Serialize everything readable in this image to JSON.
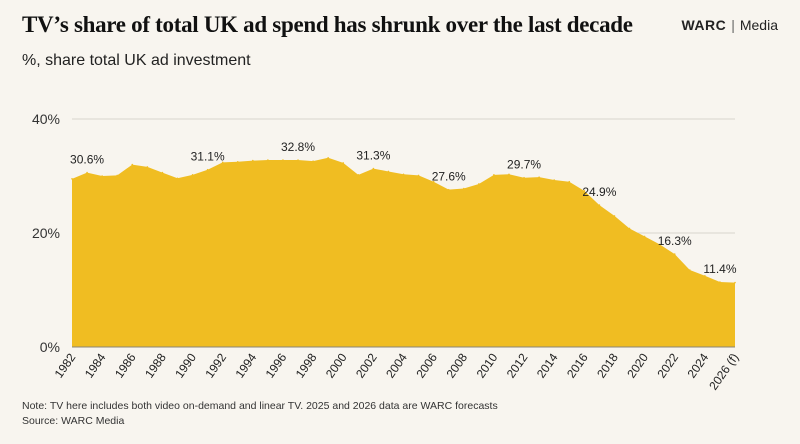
{
  "header": {
    "title": "TV’s share of total UK ad spend has shrunk over the last decade",
    "subtitle": "%, share total UK ad investment",
    "brand_name": "WARC",
    "brand_separator": "|",
    "brand_section": "Media"
  },
  "footer": {
    "note": "Note: TV here includes both video on-demand and linear TV. 2025 and 2026 data are WARC forecasts",
    "source": "Source: WARC Media"
  },
  "colors": {
    "area_fill": "#f0bd22",
    "background": "#f8f5ef",
    "grid": "#d9d5cc"
  },
  "chart_data": {
    "type": "area",
    "title": "TV’s share of total UK ad spend has shrunk over the last decade",
    "subtitle": "%, share total UK ad investment",
    "xlabel": "",
    "ylabel": "",
    "ylim": [
      0,
      40
    ],
    "y_ticks": [
      0,
      20,
      40
    ],
    "y_tick_labels": [
      "0%",
      "20%",
      "40%"
    ],
    "grid": true,
    "x": [
      1982,
      1983,
      1984,
      1985,
      1986,
      1987,
      1988,
      1989,
      1990,
      1991,
      1992,
      1993,
      1994,
      1995,
      1996,
      1997,
      1998,
      1999,
      2000,
      2001,
      2002,
      2003,
      2004,
      2005,
      2006,
      2007,
      2008,
      2009,
      2010,
      2011,
      2012,
      2013,
      2014,
      2015,
      2016,
      2017,
      2018,
      2019,
      2020,
      2021,
      2022,
      2023,
      2024,
      2025,
      2026
    ],
    "x_tick_labels": [
      "1982",
      "1984",
      "1986",
      "1988",
      "1990",
      "1992",
      "1994",
      "1996",
      "1998",
      "2000",
      "2002",
      "2004",
      "2006",
      "2008",
      "2010",
      "2012",
      "2014",
      "2016",
      "2018",
      "2020",
      "2022",
      "2024",
      "2026 (f)"
    ],
    "values": [
      29.5,
      30.6,
      30.0,
      30.1,
      32.0,
      31.6,
      30.6,
      29.6,
      30.2,
      31.1,
      32.4,
      32.5,
      32.7,
      32.8,
      32.8,
      32.8,
      32.6,
      33.2,
      32.3,
      30.2,
      31.3,
      30.8,
      30.3,
      30.1,
      29.0,
      27.6,
      27.8,
      28.6,
      30.2,
      30.3,
      29.7,
      29.8,
      29.3,
      29.0,
      27.4,
      24.9,
      23.0,
      20.8,
      19.4,
      18.0,
      16.3,
      13.5,
      12.5,
      11.4,
      11.3
    ],
    "data_labels": [
      {
        "x": 1983,
        "text": "30.6%"
      },
      {
        "x": 1991,
        "text": "31.1%"
      },
      {
        "x": 1997,
        "text": "32.8%"
      },
      {
        "x": 2002,
        "text": "31.3%"
      },
      {
        "x": 2007,
        "text": "27.6%"
      },
      {
        "x": 2012,
        "text": "29.7%"
      },
      {
        "x": 2017,
        "text": "24.9%"
      },
      {
        "x": 2022,
        "text": "16.3%"
      },
      {
        "x": 2025,
        "text": "11.4%"
      }
    ]
  }
}
